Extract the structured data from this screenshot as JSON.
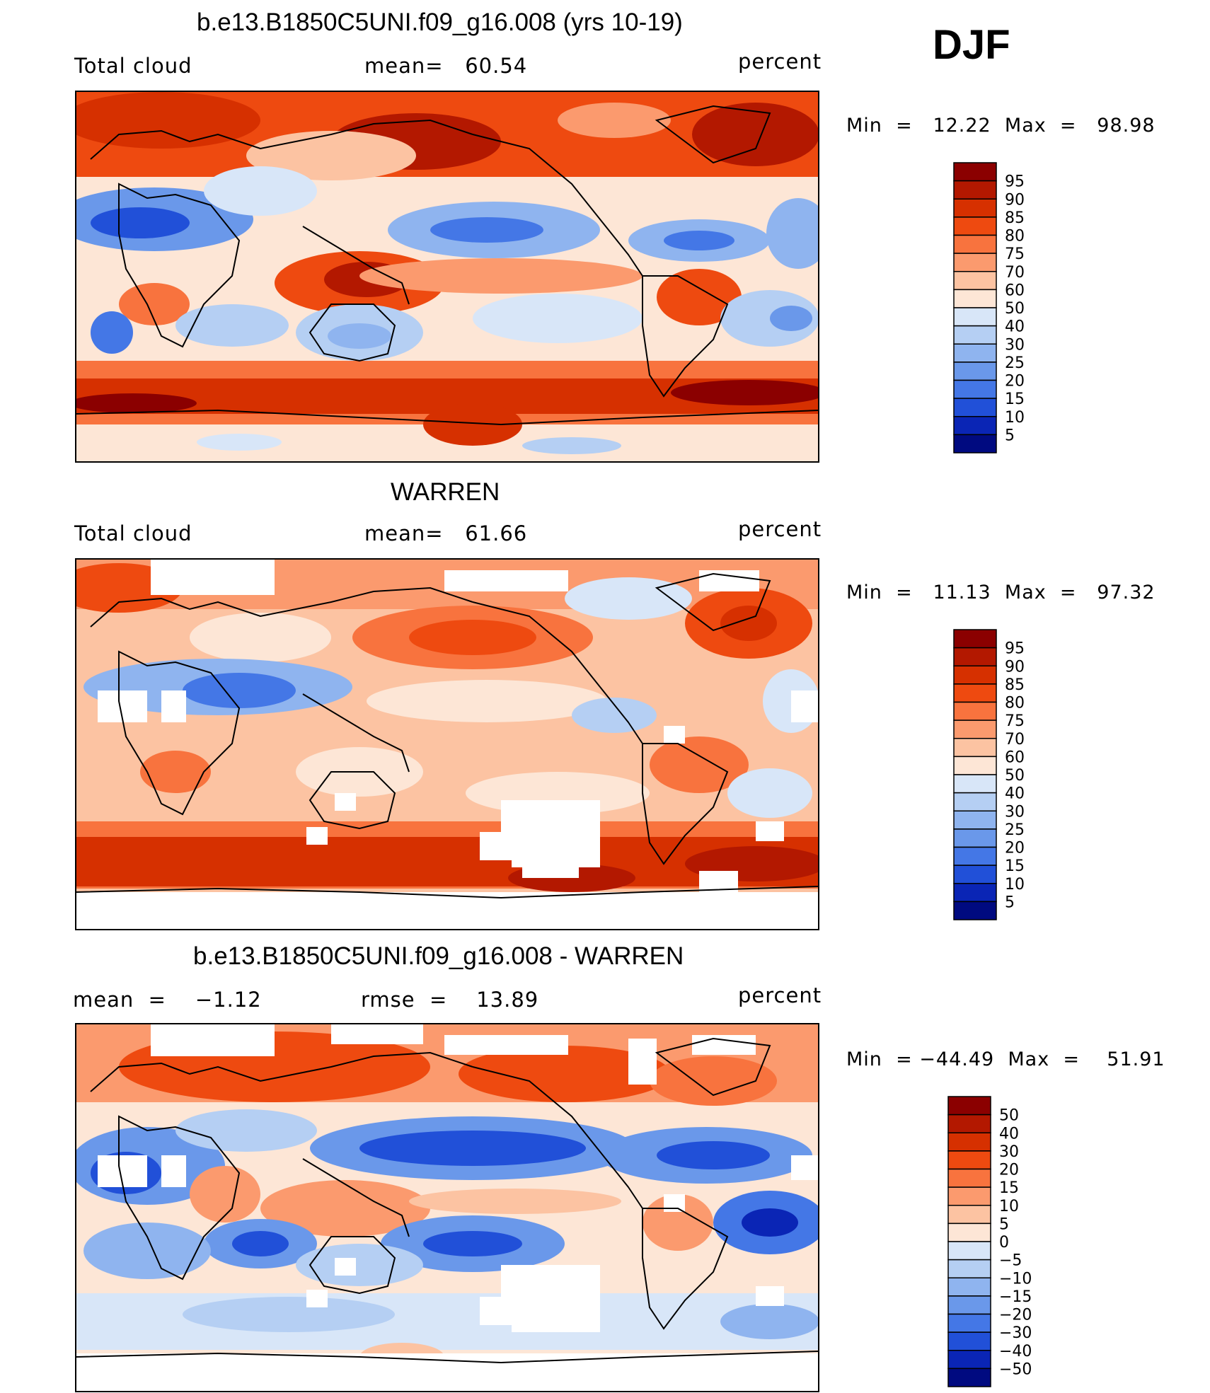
{
  "season": "DJF",
  "chart_data": [
    {
      "type": "heatmap",
      "title": "b.e13.B1850C5UNI.f09_g16.008 (yrs 10-19)",
      "left_label": "Total cloud",
      "center_label": "mean=   60.54",
      "units": "percent",
      "minmax": "Min  =   12.22  Max  =   98.98",
      "mean": 60.54,
      "min": 12.22,
      "max": 98.98,
      "colorbar_levels": [
        "95",
        "90",
        "85",
        "80",
        "75",
        "70",
        "60",
        "50",
        "40",
        "30",
        "25",
        "20",
        "15",
        "10",
        "5"
      ],
      "colorbar_colors": [
        "#8b0000",
        "#b31800",
        "#d63000",
        "#ee4a10",
        "#f8733e",
        "#fb9a6e",
        "#fcc3a2",
        "#fde6d6",
        "#d8e6f8",
        "#b5cff3",
        "#8fb4ef",
        "#6a98ea",
        "#4477e6",
        "#2150d8",
        "#0a25b5",
        "#000a80"
      ]
    },
    {
      "type": "heatmap",
      "title": "WARREN",
      "left_label": "Total cloud",
      "center_label": "mean=   61.66",
      "units": "percent",
      "minmax": "Min  =   11.13  Max  =   97.32",
      "mean": 61.66,
      "min": 11.13,
      "max": 97.32,
      "colorbar_levels": [
        "95",
        "90",
        "85",
        "80",
        "75",
        "70",
        "60",
        "50",
        "40",
        "30",
        "25",
        "20",
        "15",
        "10",
        "5"
      ],
      "colorbar_colors": [
        "#8b0000",
        "#b31800",
        "#d63000",
        "#ee4a10",
        "#f8733e",
        "#fb9a6e",
        "#fcc3a2",
        "#fde6d6",
        "#d8e6f8",
        "#b5cff3",
        "#8fb4ef",
        "#6a98ea",
        "#4477e6",
        "#2150d8",
        "#0a25b5",
        "#000a80"
      ]
    },
    {
      "type": "heatmap",
      "title": "b.e13.B1850C5UNI.f09_g16.008 - WARREN",
      "left_label": "mean  =    −1.12",
      "center_label": "rmse  =    13.89",
      "units": "percent",
      "minmax": "Min  = −44.49  Max  =    51.91",
      "mean": -1.12,
      "rmse": 13.89,
      "min": -44.49,
      "max": 51.91,
      "colorbar_levels": [
        "50",
        "40",
        "30",
        "20",
        "15",
        "10",
        "5",
        "0",
        "−5",
        "−10",
        "−15",
        "−20",
        "−30",
        "−40",
        "−50"
      ],
      "colorbar_colors": [
        "#8b0000",
        "#b31800",
        "#d63000",
        "#ee4a10",
        "#f8733e",
        "#fb9a6e",
        "#fcc3a2",
        "#fde6d6",
        "#d8e6f8",
        "#b5cff3",
        "#8fb4ef",
        "#6a98ea",
        "#4477e6",
        "#2150d8",
        "#0a25b5",
        "#000a80"
      ]
    }
  ]
}
